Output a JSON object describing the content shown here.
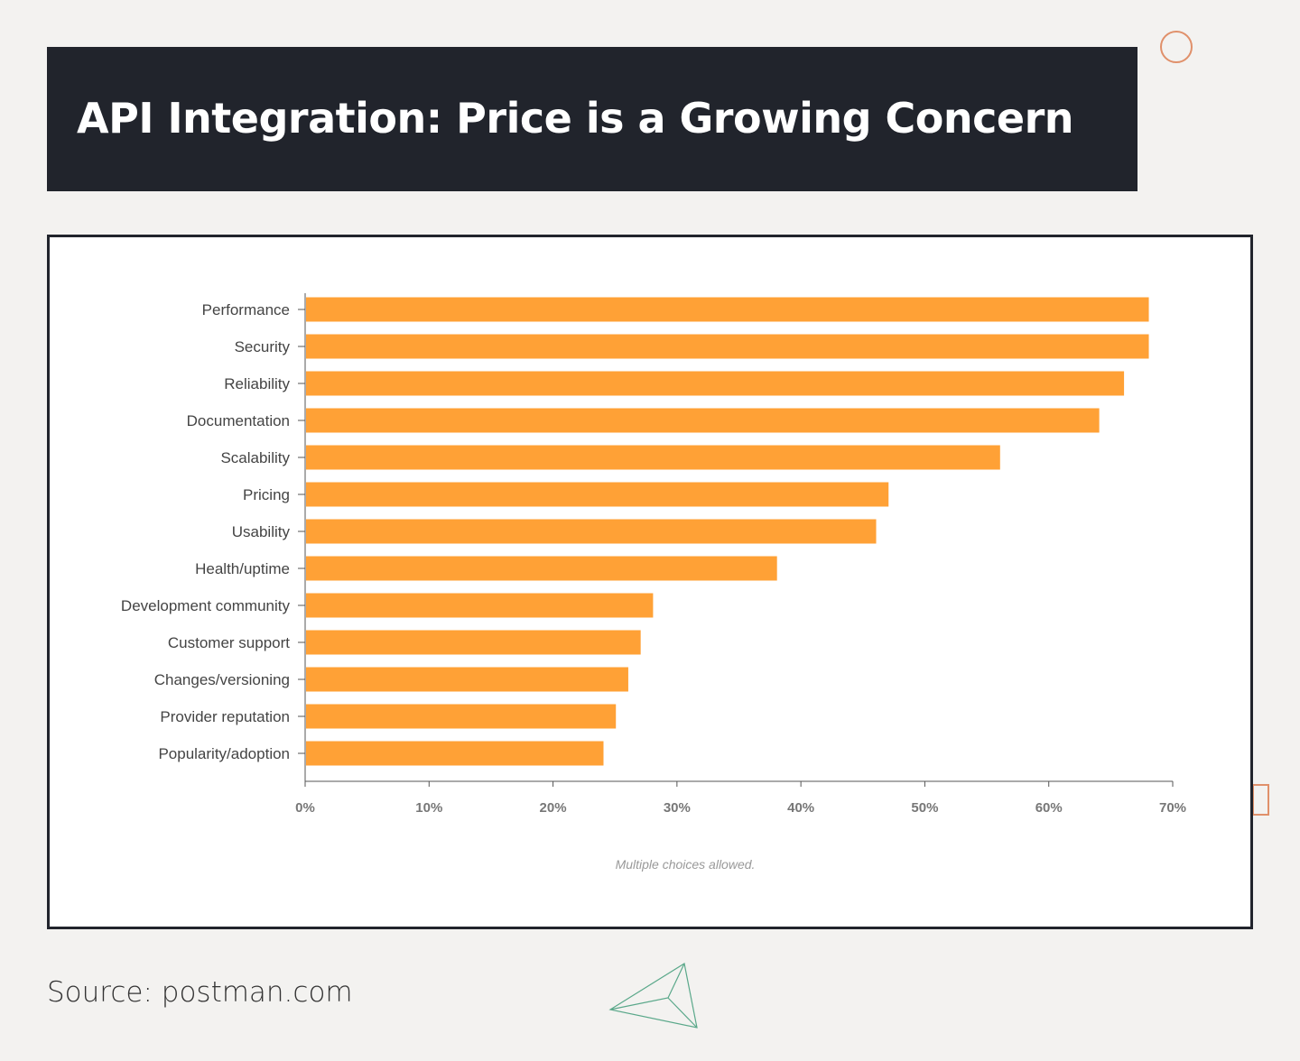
{
  "header": {
    "title": "API Integration: Price is a Growing Concern"
  },
  "chart_data": {
    "type": "bar",
    "orientation": "horizontal",
    "categories": [
      "Performance",
      "Security",
      "Reliability",
      "Documentation",
      "Scalability",
      "Pricing",
      "Usability",
      "Health/uptime",
      "Development community",
      "Customer support",
      "Changes/versioning",
      "Provider reputation",
      "Popularity/adoption"
    ],
    "values": [
      68,
      68,
      66,
      64,
      56,
      47,
      46,
      38,
      28,
      27,
      26,
      25,
      24
    ],
    "color": "#ffa136",
    "xlim": [
      0,
      70
    ],
    "xticks": [
      {
        "value": 0,
        "label": "0%"
      },
      {
        "value": 10,
        "label": "10%"
      },
      {
        "value": 20,
        "label": "20%"
      },
      {
        "value": 30,
        "label": "30%"
      },
      {
        "value": 40,
        "label": "40%"
      },
      {
        "value": 50,
        "label": "50%"
      },
      {
        "value": 60,
        "label": "60%"
      },
      {
        "value": 70,
        "label": "70%"
      }
    ],
    "note": "Multiple choices allowed."
  },
  "source": "Source: postman.com"
}
